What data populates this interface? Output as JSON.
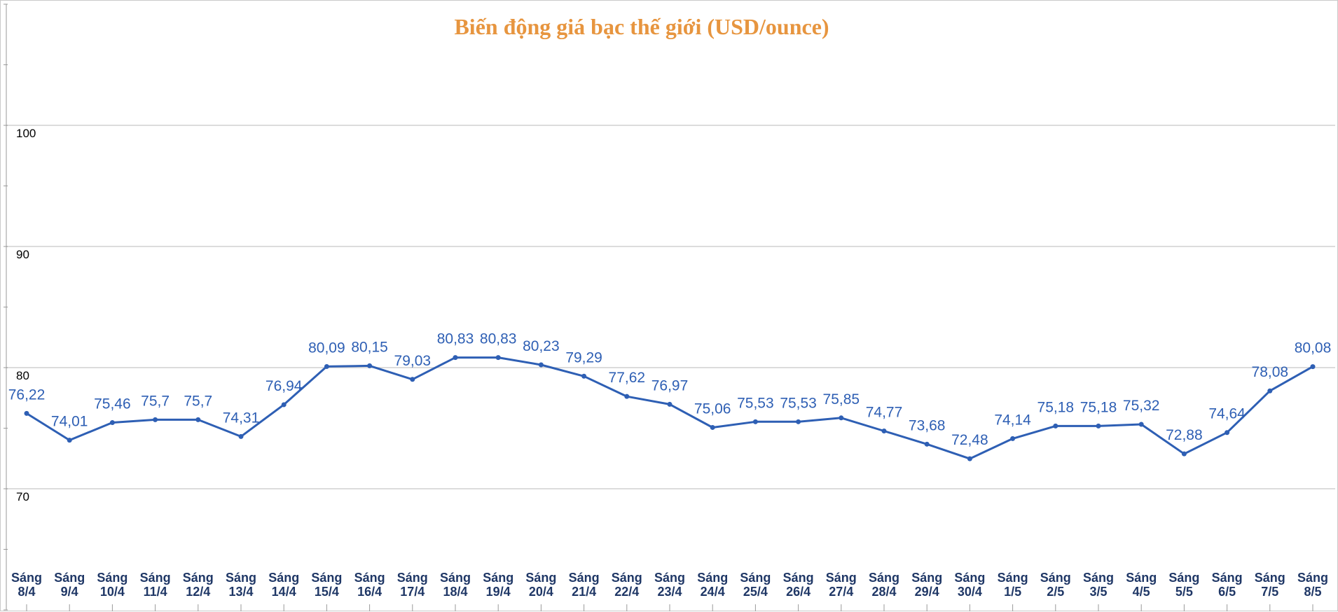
{
  "colors": {
    "title": "#E7953F",
    "line": "#2E5FB4",
    "data_label": "#2E5FB4",
    "x_label": "#1F3766",
    "grid": "#D0D0D0",
    "axis": "#9A9A9A"
  },
  "chart_data": {
    "type": "line",
    "title": "Biến động giá bạc thế giới (USD/ounce)",
    "xlabel": "",
    "ylabel": "",
    "ylim": [
      60,
      110
    ],
    "yticks": [
      70,
      80,
      90,
      100
    ],
    "grid": true,
    "legend": "none",
    "categories": [
      [
        "Sáng",
        "8/4"
      ],
      [
        "Sáng",
        "9/4"
      ],
      [
        "Sáng",
        "10/4"
      ],
      [
        "Sáng",
        "11/4"
      ],
      [
        "Sáng",
        "12/4"
      ],
      [
        "Sáng",
        "13/4"
      ],
      [
        "Sáng",
        "14/4"
      ],
      [
        "Sáng",
        "15/4"
      ],
      [
        "Sáng",
        "16/4"
      ],
      [
        "Sáng",
        "17/4"
      ],
      [
        "Sáng",
        "18/4"
      ],
      [
        "Sáng",
        "19/4"
      ],
      [
        "Sáng",
        "20/4"
      ],
      [
        "Sáng",
        "21/4"
      ],
      [
        "Sáng",
        "22/4"
      ],
      [
        "Sáng",
        "23/4"
      ],
      [
        "Sáng",
        "24/4"
      ],
      [
        "Sáng",
        "25/4"
      ],
      [
        "Sáng",
        "26/4"
      ],
      [
        "Sáng",
        "27/4"
      ],
      [
        "Sáng",
        "28/4"
      ],
      [
        "Sáng",
        "29/4"
      ],
      [
        "Sáng",
        "30/4"
      ],
      [
        "Sáng",
        "1/5"
      ],
      [
        "Sáng",
        "2/5"
      ],
      [
        "Sáng",
        "3/5"
      ],
      [
        "Sáng",
        "4/5"
      ],
      [
        "Sáng",
        "5/5"
      ],
      [
        "Sáng",
        "6/5"
      ],
      [
        "Sáng",
        "7/5"
      ],
      [
        "Sáng",
        "8/5"
      ]
    ],
    "values": [
      76.22,
      74.01,
      75.46,
      75.7,
      75.7,
      74.31,
      76.94,
      80.09,
      80.15,
      79.03,
      80.83,
      80.83,
      80.23,
      79.29,
      77.62,
      76.97,
      75.06,
      75.53,
      75.53,
      75.85,
      74.77,
      73.68,
      72.48,
      74.14,
      75.18,
      75.18,
      75.32,
      72.88,
      74.64,
      78.08,
      80.08
    ],
    "data_labels": [
      "76,22",
      "74,01",
      "75,46",
      "75,7",
      "75,7",
      "74,31",
      "76,94",
      "80,09",
      "80,15",
      "79,03",
      "80,83",
      "80,83",
      "80,23",
      "79,29",
      "77,62",
      "76,97",
      "75,06",
      "75,53",
      "75,53",
      "75,85",
      "74,77",
      "73,68",
      "72,48",
      "74,14",
      "75,18",
      "75,18",
      "75,32",
      "72,88",
      "74,64",
      "78,08",
      "80,08"
    ]
  }
}
